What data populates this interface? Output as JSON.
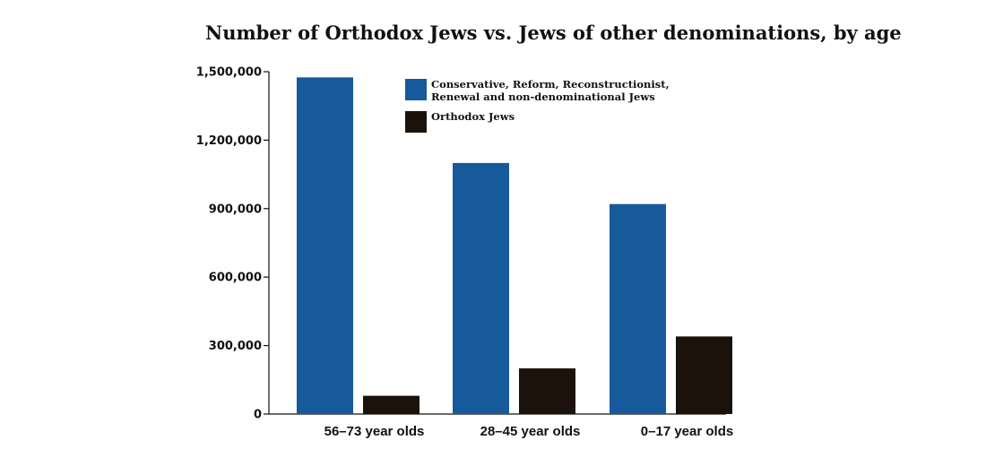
{
  "chart_data": {
    "type": "bar",
    "title": "Number of Orthodox Jews vs. Jews of other denominations, by age",
    "categories": [
      "56–73 year olds",
      "28–45  year olds",
      "0–17 year olds"
    ],
    "series": [
      {
        "name": "Conservative, Reform, Reconstructionist, Renewal and non-denominational Jews",
        "legend_lines": [
          "Conservative, Reform, Reconstructionist,",
          "Renewal and non-denominational Jews"
        ],
        "color": "#175a9b",
        "values": [
          1475000,
          1100000,
          920000
        ]
      },
      {
        "name": "Orthodox Jews",
        "legend_lines": [
          "Orthodox Jews"
        ],
        "color": "#1c120c",
        "values": [
          80000,
          200000,
          340000
        ]
      }
    ],
    "yticks": [
      0,
      300000,
      600000,
      900000,
      1200000,
      1500000
    ],
    "ytick_labels": [
      "0",
      "300,000",
      "600,000",
      "900,000",
      "1,200,000",
      "1,500,000"
    ],
    "ylim": [
      0,
      1500000
    ],
    "xlabel": "",
    "ylabel": "",
    "grid": false,
    "legend_position": "top-right"
  }
}
